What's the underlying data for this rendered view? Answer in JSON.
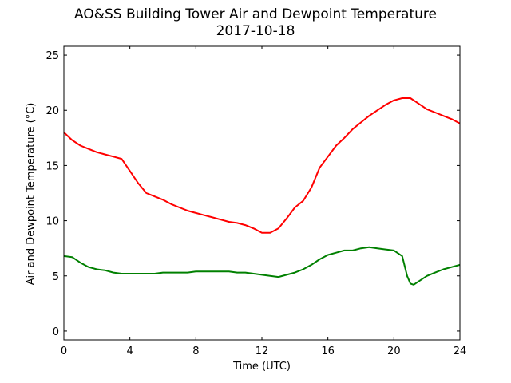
{
  "chart_data": {
    "type": "line",
    "title": "AO&SS Building Tower Air and Dewpoint Temperature",
    "subtitle": "2017-10-18",
    "xlabel": "Time (UTC)",
    "ylabel": "Air and Dewpoint Temperature (°C)",
    "xlim": [
      0,
      24
    ],
    "ylim": [
      -0.8,
      25.8
    ],
    "xticks": [
      0,
      4,
      8,
      12,
      16,
      20,
      24
    ],
    "yticks": [
      0,
      5,
      10,
      15,
      20,
      25
    ],
    "grid": false,
    "series": [
      {
        "color": "#ff0000",
        "x": [
          0,
          0.5,
          1,
          1.5,
          2,
          2.5,
          3,
          3.5,
          4,
          4.5,
          5,
          5.5,
          6,
          6.5,
          7,
          7.5,
          8,
          8.5,
          9,
          9.5,
          10,
          10.5,
          11,
          11.5,
          12,
          12.5,
          13,
          13.5,
          14,
          14.5,
          15,
          15.5,
          16,
          16.5,
          17,
          17.5,
          18,
          18.5,
          19,
          19.5,
          20,
          20.5,
          21,
          21.5,
          22,
          22.5,
          23,
          23.5,
          24
        ],
        "y": [
          18.0,
          17.3,
          16.8,
          16.5,
          16.2,
          16.0,
          15.8,
          15.6,
          14.5,
          13.4,
          12.5,
          12.2,
          11.9,
          11.5,
          11.2,
          10.9,
          10.7,
          10.5,
          10.3,
          10.1,
          9.9,
          9.8,
          9.6,
          9.3,
          8.9,
          8.9,
          9.3,
          10.2,
          11.2,
          11.8,
          13.0,
          14.8,
          15.8,
          16.8,
          17.5,
          18.3,
          18.9,
          19.5,
          20.0,
          20.5,
          20.9,
          21.1,
          21.1,
          20.6,
          20.1,
          19.8,
          19.5,
          19.2,
          18.8
        ]
      },
      {
        "color": "#008000",
        "x": [
          0,
          0.5,
          1,
          1.5,
          2,
          2.5,
          3,
          3.5,
          4,
          4.5,
          5,
          5.5,
          6,
          6.5,
          7,
          7.5,
          8,
          8.5,
          9,
          9.5,
          10,
          10.5,
          11,
          11.5,
          12,
          12.5,
          13,
          13.5,
          14,
          14.5,
          15,
          15.5,
          16,
          16.5,
          17,
          17.5,
          18,
          18.5,
          19,
          19.5,
          20,
          20.5,
          20.8,
          21,
          21.2,
          21.5,
          22,
          22.5,
          23,
          23.5,
          24
        ],
        "y": [
          6.8,
          6.7,
          6.2,
          5.8,
          5.6,
          5.5,
          5.3,
          5.2,
          5.2,
          5.2,
          5.2,
          5.2,
          5.3,
          5.3,
          5.3,
          5.3,
          5.4,
          5.4,
          5.4,
          5.4,
          5.4,
          5.3,
          5.3,
          5.2,
          5.1,
          5.0,
          4.9,
          5.1,
          5.3,
          5.6,
          6.0,
          6.5,
          6.9,
          7.1,
          7.3,
          7.3,
          7.5,
          7.6,
          7.5,
          7.4,
          7.3,
          6.8,
          5.0,
          4.3,
          4.2,
          4.5,
          5.0,
          5.3,
          5.6,
          5.8,
          6.0
        ]
      }
    ]
  }
}
